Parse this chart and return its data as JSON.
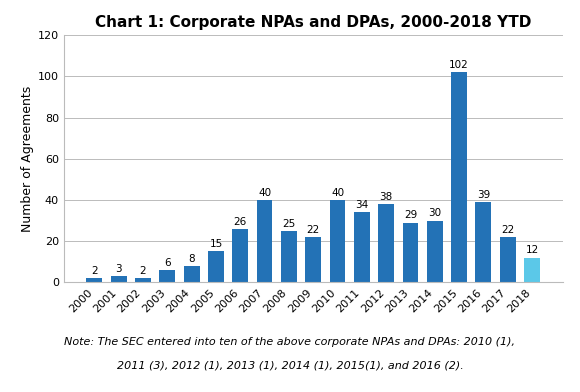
{
  "title": "Chart 1: Corporate NPAs and DPAs, 2000-2018 YTD",
  "years": [
    "2000",
    "2001",
    "2002",
    "2003",
    "2004",
    "2005",
    "2006",
    "2007",
    "2008",
    "2009",
    "2010",
    "2011",
    "2012",
    "2013",
    "2014",
    "2015",
    "2016",
    "2017",
    "2018"
  ],
  "values": [
    2,
    3,
    2,
    6,
    8,
    15,
    26,
    40,
    25,
    22,
    40,
    34,
    38,
    29,
    30,
    102,
    39,
    22,
    12
  ],
  "ylabel": "Number of Agreements",
  "ylim": [
    0,
    120
  ],
  "yticks": [
    0,
    20,
    40,
    60,
    80,
    100,
    120
  ],
  "note_line1": "Note: The SEC entered into ten of the above corporate NPAs and DPAs: 2010 (1),",
  "note_line2": "2011 (3), 2012 (1), 2013 (1), 2014 (1), 2015(1), and 2016 (2).",
  "background_color": "#ffffff",
  "grid_color": "#bbbbbb",
  "bar_color_main": "#2372b6",
  "bar_color_last": "#5bc8e8",
  "label_fontsize": 7.5,
  "title_fontsize": 11,
  "axis_fontsize": 8,
  "ylabel_fontsize": 9
}
